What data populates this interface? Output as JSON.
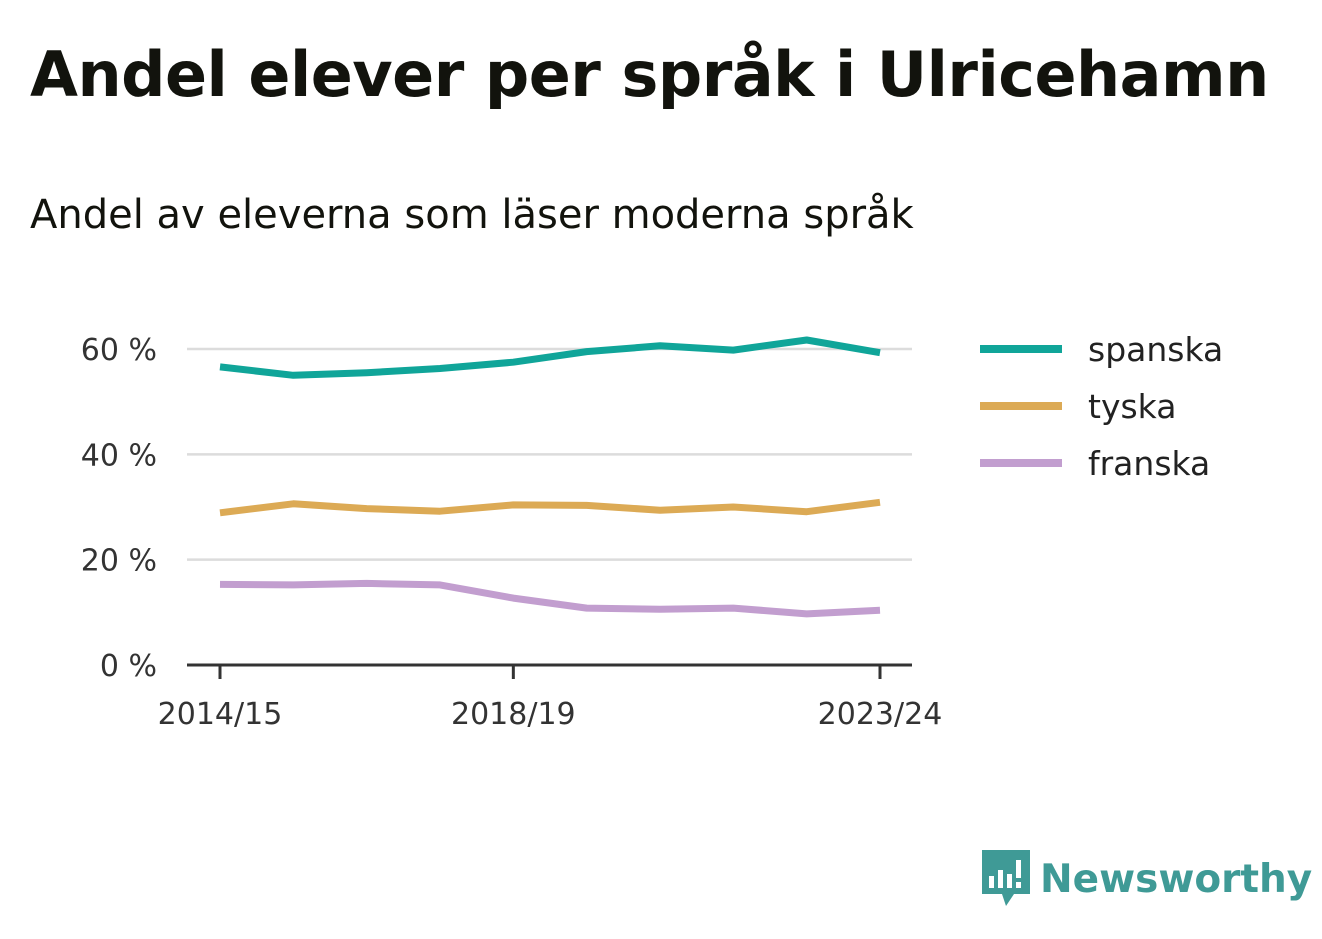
{
  "title": "Andel elever per språk i Ulricehamn",
  "subtitle": "Andel av eleverna som läser moderna språk",
  "brand": {
    "name": "Newsworthy",
    "icon": "newsworthy-logo-icon",
    "color": "#3f9a96"
  },
  "chart_data": {
    "type": "line",
    "x": [
      "2014/15",
      "2015/16",
      "2016/17",
      "2017/18",
      "2018/19",
      "2019/20",
      "2020/21",
      "2021/22",
      "2022/23",
      "2023/24"
    ],
    "x_tick_labels": [
      "2014/15",
      "2018/19",
      "2023/24"
    ],
    "y_ticks": [
      0,
      20,
      40,
      60
    ],
    "y_tick_labels": [
      "0 %",
      "20 %",
      "40 %",
      "60 %"
    ],
    "ylim": [
      0,
      60
    ],
    "grid": true,
    "legend_position": "right",
    "series": [
      {
        "name": "spanska",
        "color": "#10a599",
        "values": [
          56.6,
          55.0,
          55.5,
          56.3,
          57.5,
          59.5,
          60.6,
          59.8,
          61.7,
          59.3
        ]
      },
      {
        "name": "tyska",
        "color": "#dcaa55",
        "values": [
          28.9,
          30.6,
          29.7,
          29.2,
          30.4,
          30.3,
          29.4,
          30.0,
          29.1,
          30.9
        ]
      },
      {
        "name": "franska",
        "color": "#c29ecf",
        "values": [
          15.3,
          15.2,
          15.5,
          15.2,
          12.7,
          10.8,
          10.6,
          10.8,
          9.7,
          10.4
        ]
      }
    ]
  }
}
